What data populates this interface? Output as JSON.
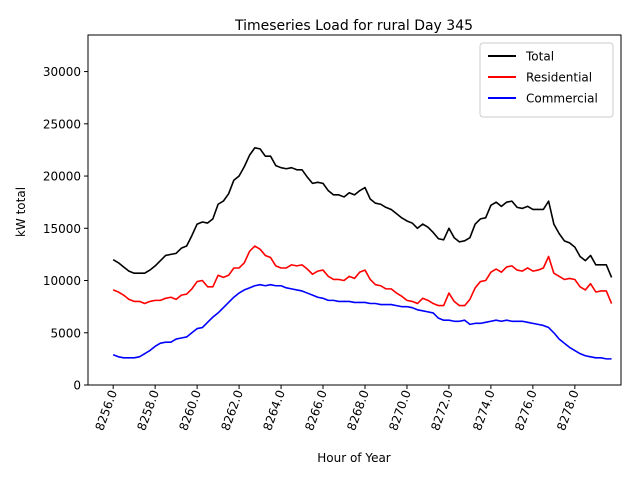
{
  "chart_data": {
    "type": "line",
    "title": "Timeseries Load for rural   Day 345",
    "xlabel": "Hour of Year",
    "ylabel": "kW total",
    "xlim": [
      8254.8,
      8280.2
    ],
    "ylim": [
      0,
      33500
    ],
    "x_ticks": [
      8256,
      8258,
      8260,
      8262,
      8264,
      8266,
      8268,
      8270,
      8272,
      8274,
      8276,
      8278
    ],
    "x_tick_labels": [
      "8256.0",
      "8258.0",
      "8260.0",
      "8262.0",
      "8264.0",
      "8266.0",
      "8268.0",
      "8270.0",
      "8272.0",
      "8274.0",
      "8276.0",
      "8278.0"
    ],
    "y_ticks": [
      0,
      5000,
      10000,
      15000,
      20000,
      25000,
      30000
    ],
    "y_tick_labels": [
      "0",
      "5000",
      "10000",
      "15000",
      "20000",
      "25000",
      "30000"
    ],
    "legend_position": "top-right",
    "x_start": 8256.0,
    "x_step": 0.25,
    "series": [
      {
        "name": "Total",
        "color": "#000000",
        "values": [
          12000,
          11700,
          11300,
          10900,
          10700,
          10700,
          10700,
          11000,
          11400,
          11900,
          12400,
          12500,
          12600,
          13100,
          13300,
          14300,
          15400,
          15600,
          15500,
          15900,
          17300,
          17600,
          18300,
          19600,
          20000,
          20900,
          22000,
          22700,
          22600,
          21900,
          21900,
          21000,
          20800,
          20700,
          20800,
          20600,
          20600,
          19900,
          19300,
          19400,
          19300,
          18600,
          18200,
          18200,
          18000,
          18400,
          18200,
          18600,
          18900,
          17800,
          17400,
          17300,
          17000,
          16800,
          16400,
          16000,
          15700,
          15500,
          15000,
          15400,
          15100,
          14600,
          14000,
          13900,
          15000,
          14100,
          13700,
          13800,
          14100,
          15400,
          15900,
          16000,
          17200,
          17500,
          17100,
          17500,
          17600,
          17000,
          16900,
          17100,
          16800,
          16800,
          16800,
          17600,
          15400,
          14500,
          13800,
          13600,
          13200,
          12300,
          11900,
          12400,
          11500,
          11500,
          11500,
          10300
        ]
      },
      {
        "name": "Residential",
        "color": "#ff0000",
        "values": [
          9100,
          8900,
          8600,
          8200,
          8000,
          8000,
          7800,
          8000,
          8100,
          8100,
          8300,
          8400,
          8200,
          8600,
          8700,
          9200,
          9900,
          10000,
          9400,
          9400,
          10500,
          10300,
          10500,
          11200,
          11200,
          11700,
          12800,
          13300,
          13000,
          12400,
          12200,
          11400,
          11200,
          11200,
          11500,
          11400,
          11500,
          11100,
          10600,
          10900,
          11000,
          10400,
          10100,
          10100,
          10000,
          10400,
          10200,
          10800,
          11000,
          10100,
          9600,
          9500,
          9200,
          9200,
          8800,
          8500,
          8100,
          8000,
          7800,
          8300,
          8100,
          7800,
          7600,
          7600,
          8800,
          8000,
          7600,
          7600,
          8200,
          9300,
          9900,
          10000,
          10800,
          11100,
          10800,
          11300,
          11400,
          11000,
          10900,
          11200,
          10900,
          11000,
          11200,
          12300,
          10700,
          10400,
          10100,
          10200,
          10100,
          9400,
          9100,
          9700,
          8900,
          9000,
          9000,
          7800
        ]
      },
      {
        "name": "Commercial",
        "color": "#0000ff",
        "values": [
          2900,
          2700,
          2600,
          2600,
          2600,
          2700,
          3000,
          3300,
          3700,
          4000,
          4100,
          4100,
          4400,
          4500,
          4600,
          5000,
          5400,
          5500,
          6000,
          6500,
          6900,
          7400,
          7900,
          8400,
          8800,
          9100,
          9300,
          9500,
          9600,
          9500,
          9600,
          9500,
          9500,
          9300,
          9200,
          9100,
          9000,
          8800,
          8600,
          8400,
          8300,
          8100,
          8100,
          8000,
          8000,
          8000,
          7900,
          7900,
          7900,
          7800,
          7800,
          7700,
          7700,
          7700,
          7600,
          7500,
          7500,
          7400,
          7200,
          7100,
          7000,
          6900,
          6400,
          6200,
          6200,
          6100,
          6100,
          6200,
          5800,
          5900,
          5900,
          6000,
          6100,
          6200,
          6100,
          6200,
          6100,
          6100,
          6100,
          6000,
          5900,
          5800,
          5700,
          5500,
          5000,
          4400,
          4000,
          3600,
          3300,
          3000,
          2800,
          2700,
          2600,
          2600,
          2500,
          2500
        ]
      }
    ]
  }
}
